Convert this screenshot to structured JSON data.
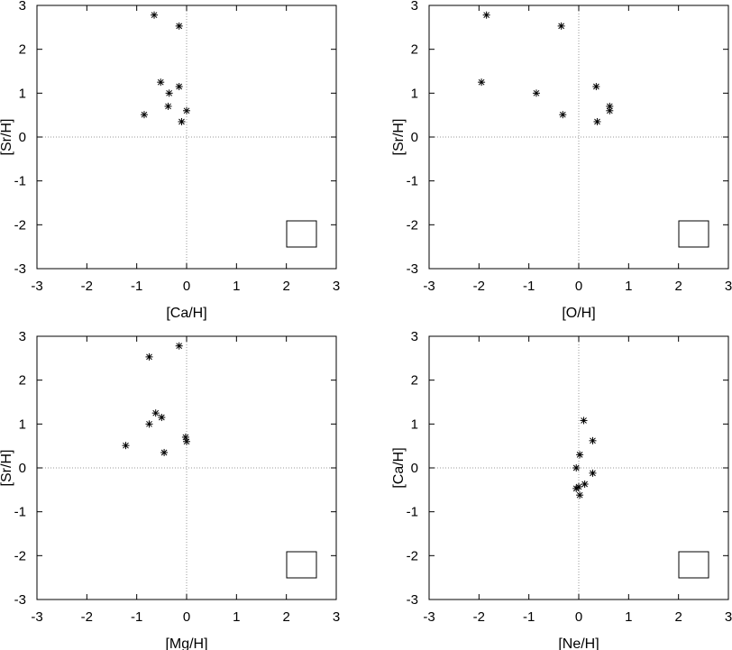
{
  "chart_data": [
    {
      "type": "scatter",
      "xlabel": "[Ca/H]",
      "ylabel": "[Sr/H]",
      "xlim": [
        -3,
        3
      ],
      "ylim": [
        -3,
        3
      ],
      "xticks": [
        "-3",
        "-2",
        "-1",
        "0",
        "1",
        "2",
        "3"
      ],
      "yticks": [
        "-3",
        "-2",
        "-1",
        "0",
        "1",
        "2",
        "3"
      ],
      "grid": "zero lines (dotted)",
      "legend": "bottom-right (empty box)",
      "marker": "asterisk",
      "series": [
        {
          "points": [
            {
              "x": -0.65,
              "y": 2.78
            },
            {
              "x": -0.15,
              "y": 2.53
            },
            {
              "x": -0.52,
              "y": 1.25
            },
            {
              "x": -0.15,
              "y": 1.15
            },
            {
              "x": -0.35,
              "y": 1.0
            },
            {
              "x": -0.85,
              "y": 0.51
            },
            {
              "x": -0.37,
              "y": 0.7
            },
            {
              "x": 0.0,
              "y": 0.6
            },
            {
              "x": -0.1,
              "y": 0.35
            }
          ]
        }
      ]
    },
    {
      "type": "scatter",
      "xlabel": "[O/H]",
      "ylabel": "[Sr/H]",
      "xlim": [
        -3,
        3
      ],
      "ylim": [
        -3,
        3
      ],
      "xticks": [
        "-3",
        "-2",
        "-1",
        "0",
        "1",
        "2",
        "3"
      ],
      "yticks": [
        "-3",
        "-2",
        "-1",
        "0",
        "1",
        "2",
        "3"
      ],
      "grid": "zero lines (dotted)",
      "legend": "bottom-right (empty box)",
      "marker": "asterisk",
      "series": [
        {
          "points": [
            {
              "x": -1.85,
              "y": 2.78
            },
            {
              "x": -0.35,
              "y": 2.53
            },
            {
              "x": -1.95,
              "y": 1.25
            },
            {
              "x": -0.85,
              "y": 1.0
            },
            {
              "x": 0.35,
              "y": 1.15
            },
            {
              "x": -0.32,
              "y": 0.51
            },
            {
              "x": 0.62,
              "y": 0.7
            },
            {
              "x": 0.62,
              "y": 0.6
            },
            {
              "x": 0.37,
              "y": 0.35
            }
          ]
        }
      ]
    },
    {
      "type": "scatter",
      "xlabel": "[Mg/H]",
      "ylabel": "[Sr/H]",
      "xlim": [
        -3,
        3
      ],
      "ylim": [
        -3,
        3
      ],
      "xticks": [
        "-3",
        "-2",
        "-1",
        "0",
        "1",
        "2",
        "3"
      ],
      "yticks": [
        "-3",
        "-2",
        "-1",
        "0",
        "1",
        "2",
        "3"
      ],
      "grid": "zero lines (dotted)",
      "legend": "bottom-right (empty box)",
      "marker": "asterisk",
      "series": [
        {
          "points": [
            {
              "x": -0.15,
              "y": 2.78
            },
            {
              "x": -0.75,
              "y": 2.53
            },
            {
              "x": -0.62,
              "y": 1.25
            },
            {
              "x": -0.5,
              "y": 1.15
            },
            {
              "x": -0.75,
              "y": 1.0
            },
            {
              "x": -1.22,
              "y": 0.51
            },
            {
              "x": -0.02,
              "y": 0.7
            },
            {
              "x": 0.0,
              "y": 0.6
            },
            {
              "x": -0.45,
              "y": 0.35
            }
          ]
        }
      ]
    },
    {
      "type": "scatter",
      "xlabel": "[Ne/H]",
      "ylabel": "[Ca/H]",
      "xlim": [
        -3,
        3
      ],
      "ylim": [
        -3,
        3
      ],
      "xticks": [
        "-3",
        "-2",
        "-1",
        "0",
        "1",
        "2",
        "3"
      ],
      "yticks": [
        "-3",
        "-2",
        "-1",
        "0",
        "1",
        "2",
        "3"
      ],
      "grid": "zero lines (dotted)",
      "legend": "bottom-right (empty box)",
      "marker": "asterisk",
      "series": [
        {
          "points": [
            {
              "x": 0.1,
              "y": 1.08
            },
            {
              "x": 0.28,
              "y": 0.62
            },
            {
              "x": 0.02,
              "y": 0.3
            },
            {
              "x": -0.05,
              "y": 0.0
            },
            {
              "x": 0.28,
              "y": -0.12
            },
            {
              "x": 0.12,
              "y": -0.37
            },
            {
              "x": 0.0,
              "y": -0.43
            },
            {
              "x": -0.05,
              "y": -0.47
            },
            {
              "x": 0.02,
              "y": -0.62
            }
          ]
        }
      ]
    }
  ]
}
